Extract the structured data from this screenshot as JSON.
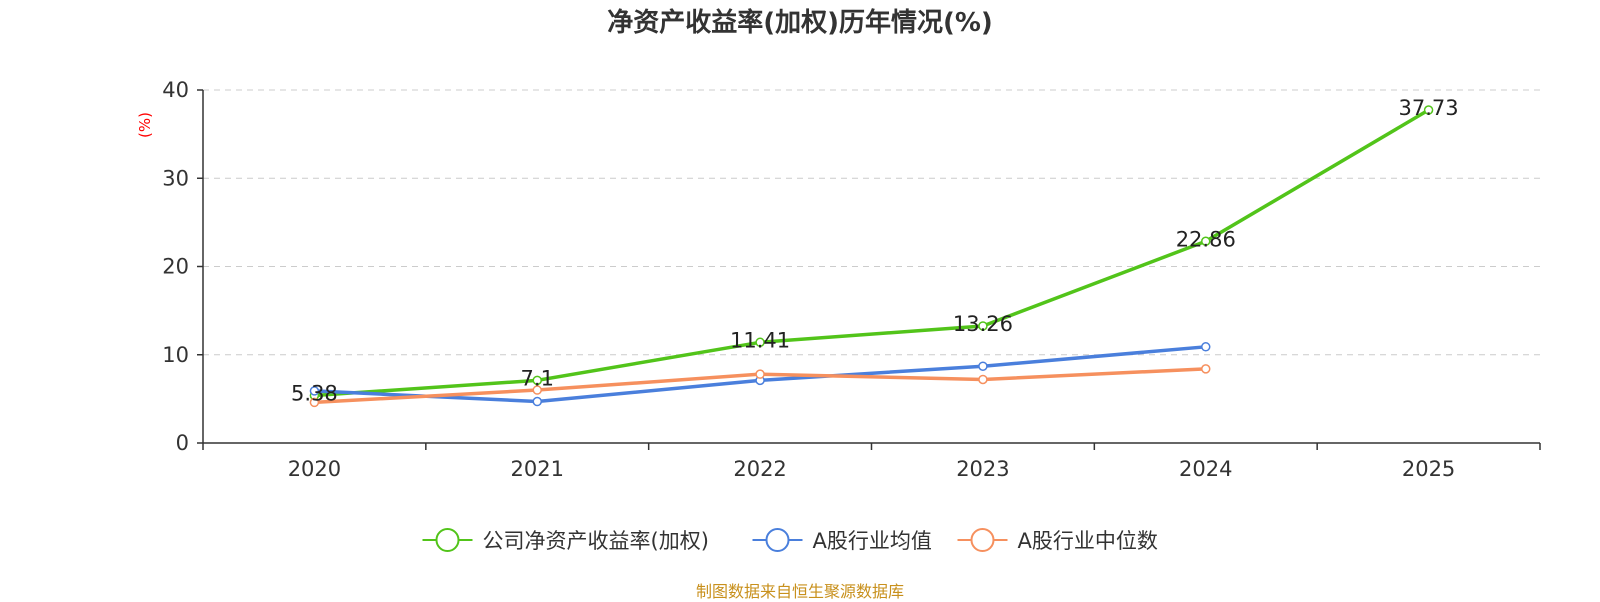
{
  "chart_data": {
    "type": "line",
    "title": "净资产收益率(加权)历年情况(%)",
    "ylabel": "(%)",
    "xlabel": "",
    "categories": [
      "2020",
      "2021",
      "2022",
      "2023",
      "2024",
      "2025"
    ],
    "ylim": [
      0,
      40
    ],
    "yticks": [
      0,
      10,
      20,
      30,
      40
    ],
    "grid": true,
    "legend_position": "bottom-center",
    "series": [
      {
        "name": "公司净资产收益率(加权)",
        "color": "#52c41a",
        "values": [
          5.38,
          7.1,
          11.41,
          13.26,
          22.86,
          37.73
        ],
        "labels": [
          "5.38",
          "7.1",
          "11.41",
          "13.26",
          "22.86",
          "37.73"
        ]
      },
      {
        "name": "A股行业均值",
        "color": "#4a7fdc",
        "values": [
          5.9,
          4.7,
          7.1,
          8.7,
          10.9,
          null
        ]
      },
      {
        "name": "A股行业中位数",
        "color": "#f6905e",
        "values": [
          4.6,
          6.0,
          7.8,
          7.2,
          8.4,
          null
        ]
      }
    ]
  },
  "source": "制图数据来自恒生聚源数据库"
}
